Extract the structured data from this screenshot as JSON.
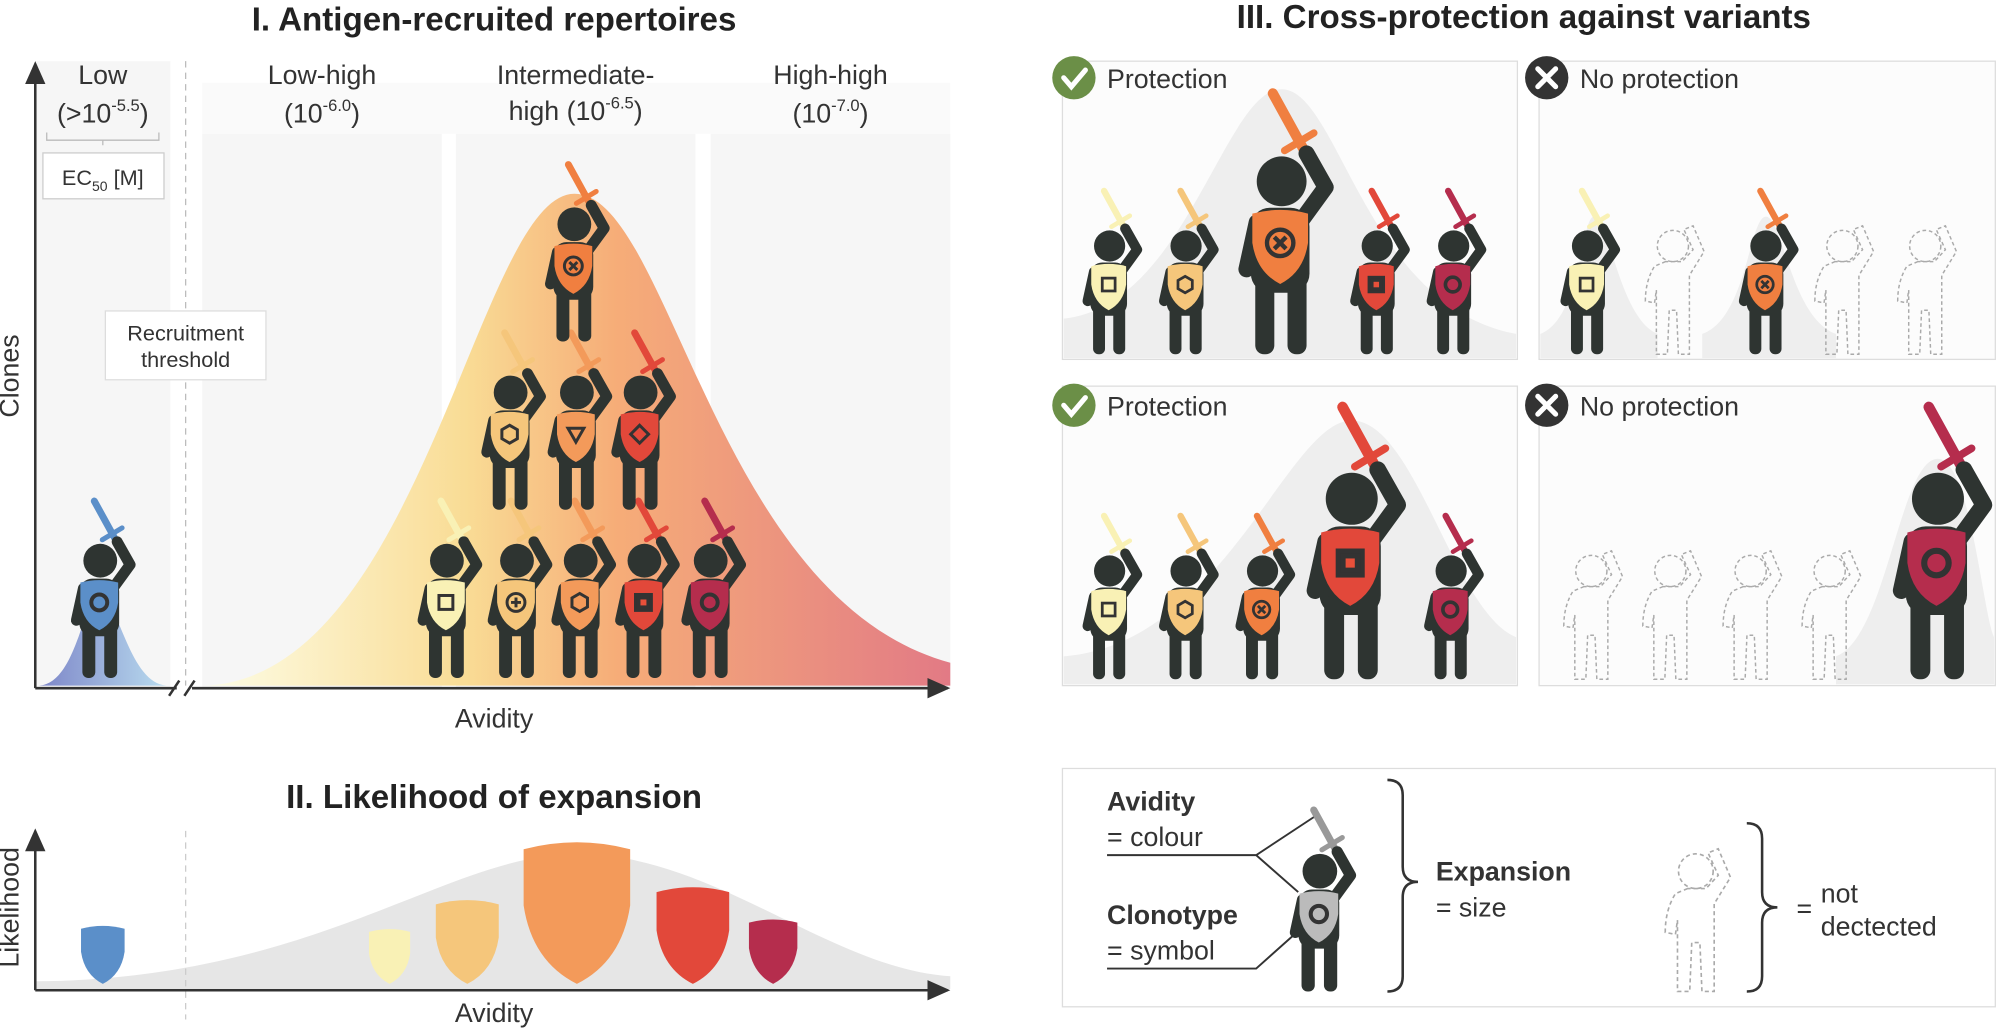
{
  "panel_1": {
    "title": "I. Antigen-recruited repertoires",
    "y_axis": "Clones",
    "x_axis": "Avidity",
    "groups": [
      {
        "name": "Low",
        "ec50": {
          "prefix": "(>10",
          "exponent": "-5.5",
          "suffix": ")"
        }
      },
      {
        "name": "Low-high",
        "ec50": {
          "prefix": "(10",
          "exponent": "-6.0",
          "suffix": ")"
        }
      },
      {
        "name": "Intermediate-",
        "ec50": {
          "prefix": "high (10",
          "exponent": "-6.5",
          "suffix": ")"
        }
      },
      {
        "name": "High-high",
        "ec50": {
          "prefix": "(10",
          "exponent": "-7.0",
          "suffix": ")"
        }
      }
    ],
    "ec50_unit": {
      "base": "EC",
      "subscript": "50",
      "suffix": " [M]"
    },
    "threshold": [
      "Recruitment",
      "threshold"
    ]
  },
  "panel_2": {
    "title": "II. Likelihood of expansion",
    "y_axis": "Likelihood",
    "x_axis": "Avidity"
  },
  "panel_3": {
    "title": "III. Cross-protection against variants",
    "panels": [
      "Protection",
      "No protection",
      "Protection",
      "No protection"
    ]
  },
  "legend": {
    "avidity": "Avidity",
    "avidity_meaning": "= colour",
    "clonotype": "Clonotype",
    "clonotype_meaning": "= symbol",
    "expansion": "Expansion",
    "expansion_meaning": "= size",
    "equals": "=",
    "not_detected": [
      "not",
      "dectected"
    ]
  }
}
